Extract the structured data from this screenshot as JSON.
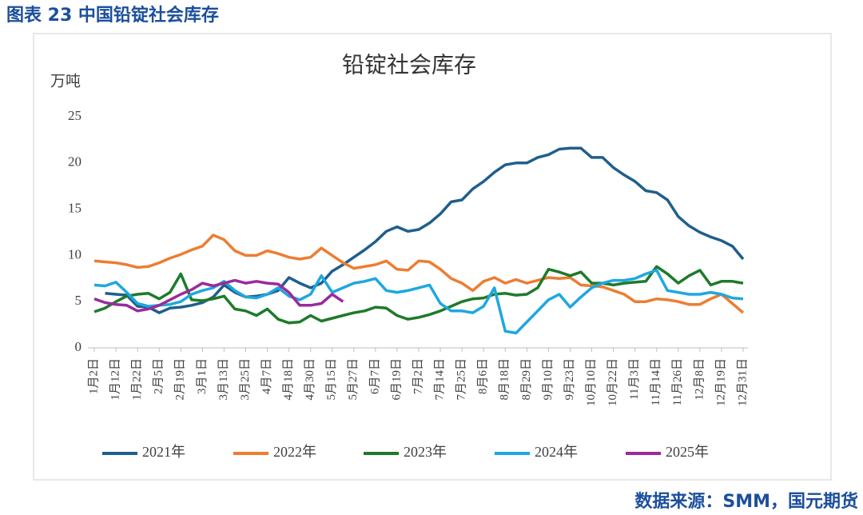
{
  "header": {
    "title": "图表 23 中国铅锭社会库存"
  },
  "chart_data": {
    "type": "line",
    "title": "铅锭社会库存",
    "y_label": "万吨",
    "categories": [
      "1月2日",
      null,
      "1月12日",
      null,
      "1月22日",
      null,
      "2月5日",
      null,
      "2月19日",
      null,
      "3月1日",
      null,
      "3月13日",
      null,
      "3月25日",
      null,
      "4月7日",
      null,
      "4月18日",
      null,
      "4月30日",
      null,
      "5月15日",
      null,
      "5月27日",
      null,
      "6月7日",
      null,
      "6月19日",
      null,
      "7月2日",
      null,
      "7月14日",
      null,
      "7月25日",
      null,
      "8月6日",
      null,
      "8月18日",
      null,
      "8月29日",
      null,
      "9月10日",
      null,
      "9月23日",
      null,
      "10月10日",
      null,
      "10月22日",
      null,
      "11月3日",
      null,
      "11月14日",
      null,
      "11月26日",
      null,
      "12月8日",
      null,
      "12月19日",
      null,
      "12月31日"
    ],
    "series": [
      {
        "name": "2021年",
        "color": "#1f5f8b",
        "values": [
          null,
          5.9,
          5.8,
          5.7,
          4.5,
          4.4,
          3.8,
          4.3,
          4.4,
          4.6,
          4.9,
          5.5,
          6.8,
          6.0,
          5.5,
          5.6,
          5.8,
          6.2,
          7.6,
          7.0,
          6.5,
          7.0,
          8.3,
          9.0,
          9.8,
          10.6,
          11.5,
          12.6,
          13.1,
          12.6,
          12.8,
          13.5,
          14.5,
          15.8,
          16.0,
          17.2,
          18.0,
          19.0,
          19.8,
          20.0,
          20.0,
          20.6,
          20.9,
          21.5,
          21.6,
          21.6,
          20.6,
          20.6,
          19.5,
          18.7,
          18.0,
          17.0,
          16.8,
          16.0,
          14.2,
          13.2,
          12.5,
          12.0,
          11.6,
          11.0,
          9.6
        ]
      },
      {
        "name": "2022年",
        "color": "#ed7d31",
        "values": [
          9.4,
          9.3,
          9.2,
          9.0,
          8.7,
          8.8,
          9.2,
          9.7,
          10.1,
          10.6,
          11.0,
          12.2,
          11.7,
          10.5,
          10.0,
          10.0,
          10.5,
          10.2,
          9.8,
          9.6,
          9.8,
          10.8,
          10.0,
          9.2,
          8.6,
          8.8,
          9.0,
          9.4,
          8.5,
          8.4,
          9.4,
          9.3,
          8.5,
          7.5,
          7.0,
          6.2,
          7.2,
          7.6,
          7.0,
          7.4,
          7.0,
          7.3,
          7.6,
          7.5,
          7.6,
          6.8,
          6.7,
          6.6,
          6.2,
          5.8,
          5.0,
          5.0,
          5.3,
          5.2,
          5.0,
          4.7,
          4.7,
          5.3,
          5.8,
          4.8,
          3.8
        ]
      },
      {
        "name": "2023年",
        "color": "#1e7a2a",
        "values": [
          3.9,
          4.3,
          5.0,
          5.6,
          5.8,
          5.9,
          5.3,
          6.0,
          8.0,
          5.2,
          5.1,
          5.3,
          5.6,
          4.2,
          4.0,
          3.5,
          4.2,
          3.1,
          2.7,
          2.8,
          3.5,
          2.9,
          3.2,
          3.5,
          3.8,
          4.0,
          4.4,
          4.3,
          3.5,
          3.1,
          3.3,
          3.6,
          4.0,
          4.5,
          5.0,
          5.3,
          5.4,
          5.8,
          5.9,
          5.7,
          5.8,
          6.5,
          8.5,
          8.2,
          7.8,
          8.2,
          7.0,
          7.0,
          6.8,
          7.0,
          7.1,
          7.2,
          8.8,
          8.0,
          7.0,
          7.8,
          8.4,
          6.8,
          7.2,
          7.2,
          7.0
        ]
      },
      {
        "name": "2024年",
        "color": "#1ea7e1",
        "values": [
          6.8,
          6.7,
          7.1,
          6.0,
          4.8,
          4.5,
          4.6,
          4.7,
          5.0,
          5.8,
          6.2,
          6.5,
          7.2,
          6.2,
          5.5,
          5.4,
          5.8,
          6.5,
          5.6,
          5.2,
          5.8,
          7.8,
          6.0,
          6.5,
          7.0,
          7.2,
          7.5,
          6.2,
          6.0,
          6.2,
          6.5,
          6.8,
          4.8,
          4.0,
          4.0,
          3.8,
          4.5,
          6.5,
          1.8,
          1.6,
          2.8,
          4.0,
          5.2,
          5.8,
          4.4,
          5.5,
          6.5,
          7.0,
          7.3,
          7.3,
          7.5,
          8.0,
          8.4,
          6.2,
          6.0,
          5.8,
          5.8,
          6.0,
          5.8,
          5.4,
          5.3
        ]
      },
      {
        "name": "2025年",
        "color": "#9b2a9b",
        "values": [
          5.3,
          4.9,
          4.7,
          4.6,
          4.0,
          4.2,
          4.6,
          5.2,
          5.8,
          6.3,
          7.0,
          6.7,
          7.0,
          7.3,
          7.0,
          7.2,
          7.0,
          6.9,
          6.0,
          4.6,
          4.6,
          4.8,
          5.8,
          5.0,
          null,
          null,
          null,
          null,
          null,
          null,
          null,
          null,
          null,
          null,
          null,
          null,
          null,
          null,
          null,
          null,
          null,
          null,
          null,
          null,
          null,
          null,
          null,
          null,
          null,
          null,
          null,
          null,
          null,
          null,
          null,
          null,
          null,
          null,
          null,
          null,
          null
        ]
      }
    ],
    "ylim": [
      0,
      25
    ],
    "yticks": [
      0,
      5,
      10,
      15,
      20,
      25
    ],
    "grid": false,
    "legend": "bottom"
  },
  "source": "数据来源：SMM，国元期货"
}
